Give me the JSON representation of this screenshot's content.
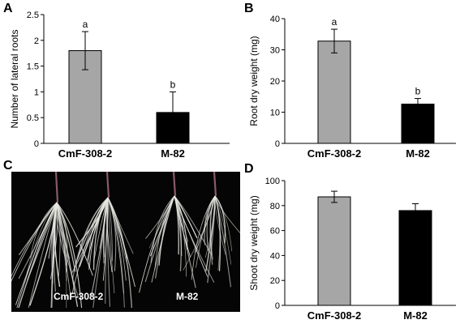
{
  "panels": {
    "a": {
      "letter": "A"
    },
    "b": {
      "letter": "B"
    },
    "c": {
      "letter": "C",
      "photo_labels": [
        "CmF-308-2",
        "M-82"
      ]
    },
    "d": {
      "letter": "D"
    }
  },
  "colors": {
    "cmf_bar": "#a6a6a6",
    "m82_bar": "#000000",
    "axis": "#000000",
    "photo_bg": "#050505",
    "roots": "#e8e8e2"
  },
  "chart_data": [
    {
      "panel": "A",
      "type": "bar",
      "categories": [
        "CmF-308-2",
        "M-82"
      ],
      "values": [
        1.8,
        0.6
      ],
      "errors": [
        0.37,
        0.4
      ],
      "significance_letters": [
        "a",
        "b"
      ],
      "ylabel": "Number of lateral roots",
      "xlabel": "",
      "ylim": [
        0,
        2.5
      ],
      "yticks": [
        0,
        0.5,
        1,
        1.5,
        2,
        2.5
      ],
      "ytick_labels": [
        "0",
        "0.5",
        "1",
        "1.5",
        "2",
        "2.5"
      ],
      "grid": false,
      "bar_colors": [
        "#a6a6a6",
        "#000000"
      ]
    },
    {
      "panel": "B",
      "type": "bar",
      "categories": [
        "CmF-308-2",
        "M-82"
      ],
      "values": [
        32.8,
        12.6
      ],
      "errors": [
        3.8,
        1.8
      ],
      "significance_letters": [
        "a",
        "b"
      ],
      "ylabel": "Root dry weight (mg)",
      "xlabel": "",
      "ylim": [
        0,
        40
      ],
      "yticks": [
        0,
        10,
        20,
        30,
        40
      ],
      "ytick_labels": [
        "0",
        "10",
        "20",
        "30",
        "40"
      ],
      "grid": false,
      "bar_colors": [
        "#a6a6a6",
        "#000000"
      ]
    },
    {
      "panel": "D",
      "type": "bar",
      "categories": [
        "CmF-308-2",
        "M-82"
      ],
      "values": [
        87,
        76
      ],
      "errors": [
        4.5,
        5.5
      ],
      "significance_letters": [
        "",
        ""
      ],
      "ylabel": "Shoot dry weight (mg)",
      "xlabel": "",
      "ylim": [
        0,
        100
      ],
      "yticks": [
        0,
        20,
        40,
        60,
        80,
        100
      ],
      "ytick_labels": [
        "0",
        "20",
        "40",
        "60",
        "80",
        "100"
      ],
      "grid": false,
      "bar_colors": [
        "#a6a6a6",
        "#000000"
      ]
    }
  ]
}
